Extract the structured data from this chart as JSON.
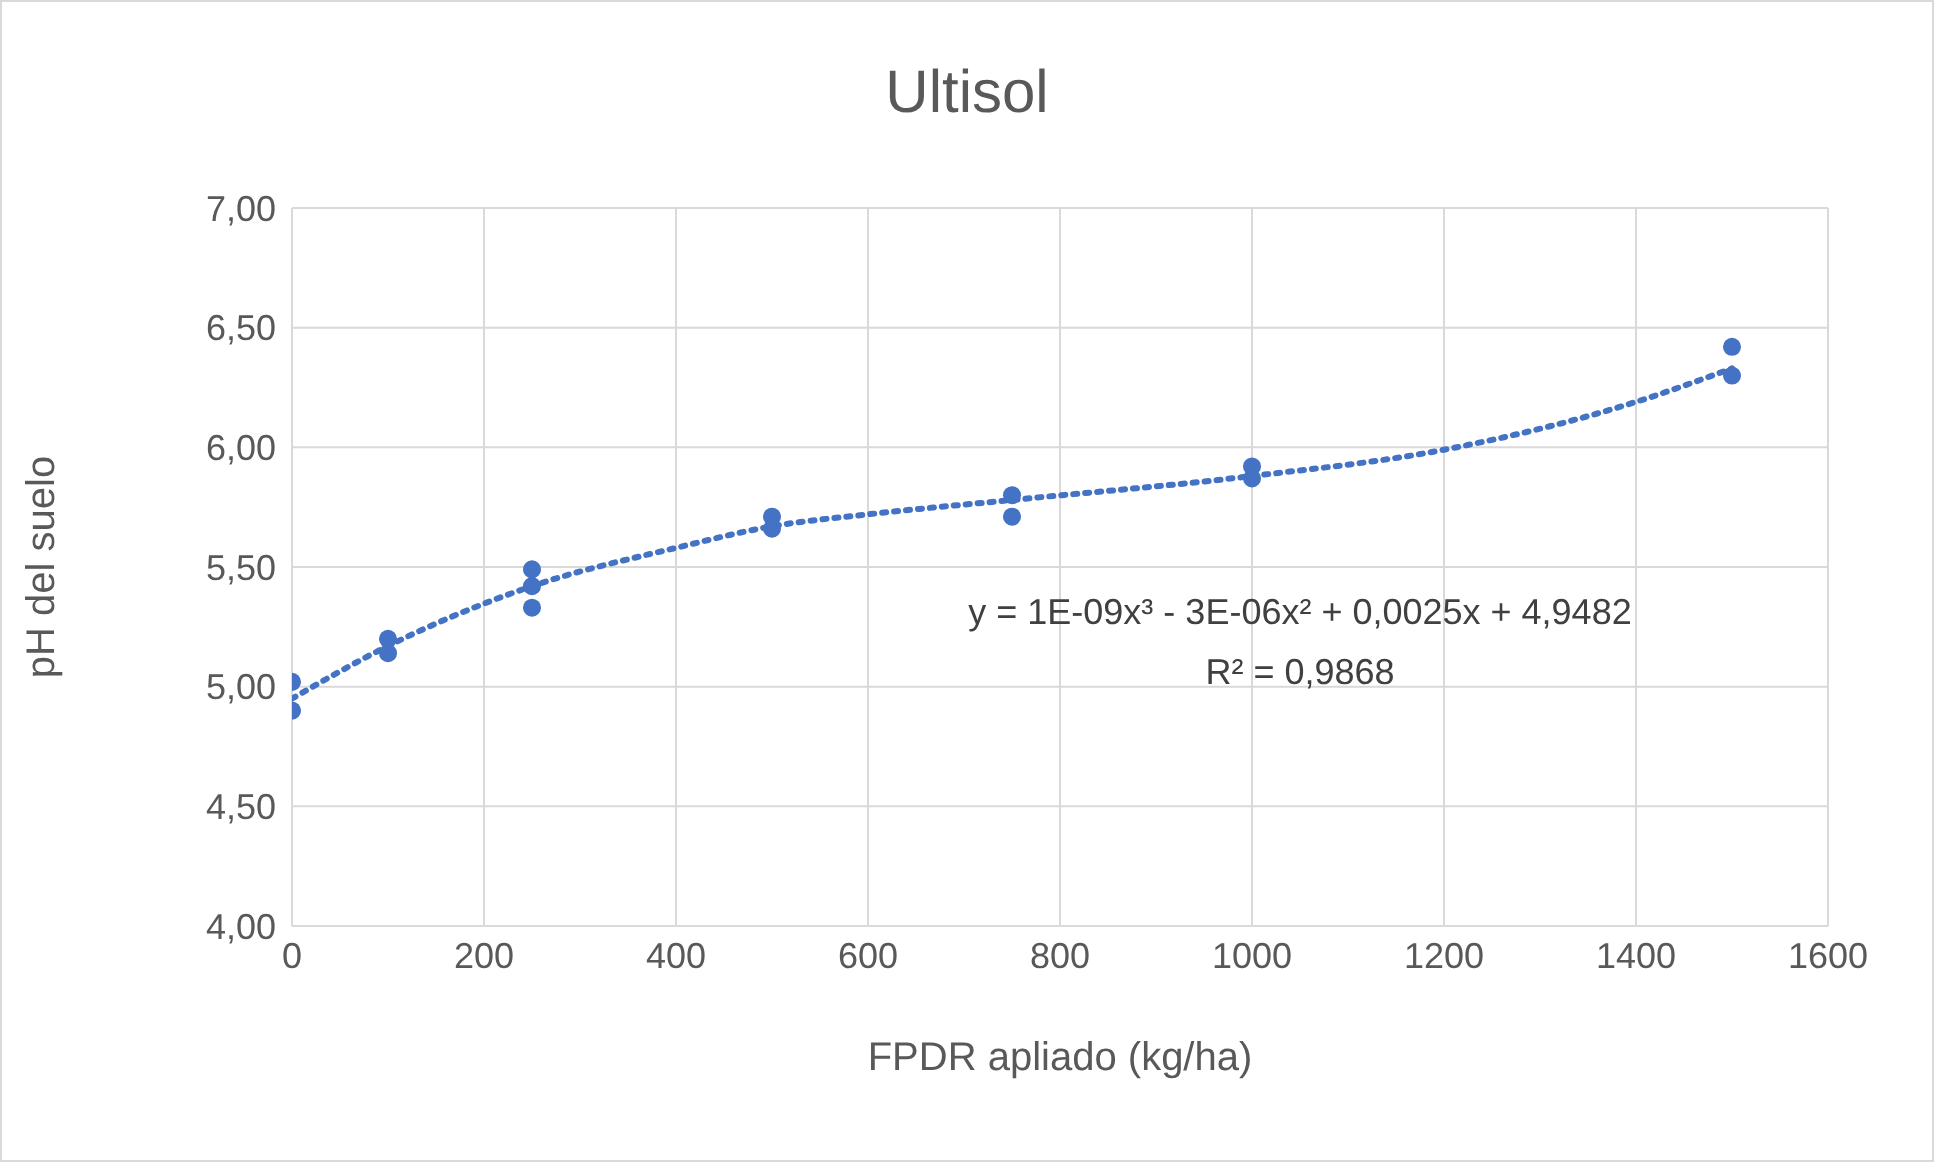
{
  "chart_data": {
    "type": "scatter",
    "title": "Ultisol",
    "xlabel": "FPDR apliado (kg/ha)",
    "ylabel": "pH del suelo",
    "xlim": [
      0,
      1600
    ],
    "xticks": [
      0,
      200,
      400,
      600,
      800,
      1000,
      1200,
      1400,
      1600
    ],
    "ylim": [
      4,
      7
    ],
    "yticks": [
      {
        "value": 4,
        "label": "4,00"
      },
      {
        "value": 4.5,
        "label": "4,50"
      },
      {
        "value": 5,
        "label": "5,00"
      },
      {
        "value": 5.5,
        "label": "5,50"
      },
      {
        "value": 6,
        "label": "6,00"
      },
      {
        "value": 6.5,
        "label": "6,50"
      },
      {
        "value": 7,
        "label": "7,00"
      }
    ],
    "grid": true,
    "series": [
      {
        "color": "#4472c4",
        "marker": "circle",
        "x": [
          0,
          0,
          100,
          100,
          250,
          250,
          250,
          500,
          500,
          750,
          750,
          1000,
          1000,
          1500,
          1500
        ],
        "values": [
          5.02,
          4.9,
          5.2,
          5.14,
          5.49,
          5.42,
          5.33,
          5.71,
          5.66,
          5.8,
          5.71,
          5.92,
          5.87,
          6.42,
          6.3
        ]
      },
      {
        "type": "line",
        "color": "#4472c4",
        "marker": "none",
        "line_style": "dotted",
        "x": [
          0,
          100,
          250,
          400,
          500,
          600,
          750,
          1000,
          1200,
          1400,
          1500
        ],
        "values": [
          4.95,
          5.17,
          5.42,
          5.58,
          5.67,
          5.72,
          5.78,
          5.88,
          5.99,
          6.19,
          6.33
        ]
      }
    ],
    "annotations": [
      "y = 1E-09x³ - 3E-06x² + 0,0025x + 4,9482",
      "R² = 0,9868"
    ]
  }
}
